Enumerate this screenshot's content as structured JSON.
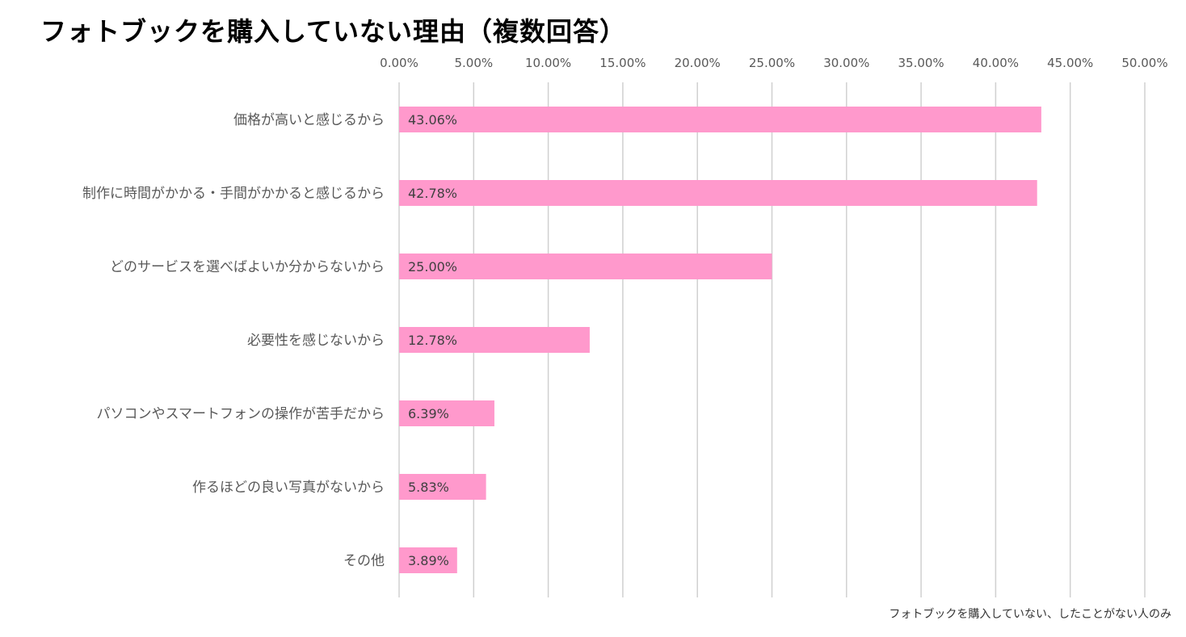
{
  "chart_data": {
    "type": "bar",
    "orientation": "horizontal",
    "title": "フォトブックを購入していない理由（複数回答）",
    "categories": [
      "価格が高いと感じるから",
      "制作に時間がかかる・手間がかかると感じるから",
      "どのサービスを選べばよいか分からないから",
      "必要性を感じないから",
      "パソコンやスマートフォンの操作が苦手だから",
      "作るほどの良い写真がないから",
      "その他"
    ],
    "values": [
      43.06,
      42.78,
      25.0,
      12.78,
      6.39,
      5.83,
      3.89
    ],
    "data_labels": [
      "43.06%",
      "42.78%",
      "25.00%",
      "12.78%",
      "6.39%",
      "5.83%",
      "3.89%"
    ],
    "x_ticks": [
      "0.00%",
      "5.00%",
      "10.00%",
      "15.00%",
      "20.00%",
      "25.00%",
      "30.00%",
      "35.00%",
      "40.00%",
      "45.00%",
      "50.00%"
    ],
    "xlim": [
      0,
      50
    ],
    "x_axis_position": "top",
    "grid": true,
    "bar_color": "#FF99CC",
    "note": "フォトブックを購入していない、したことがない人のみ"
  }
}
